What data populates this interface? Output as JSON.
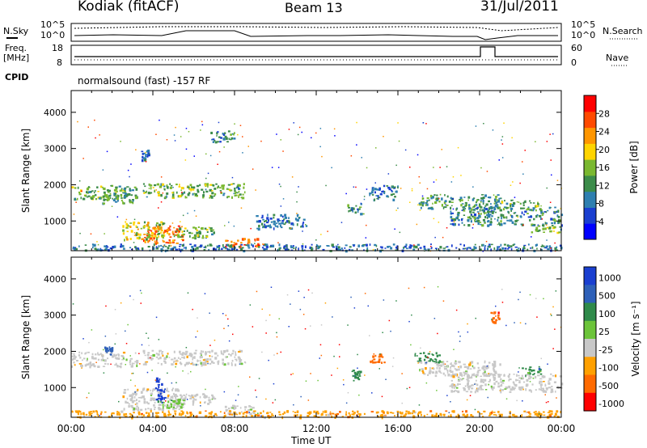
{
  "header": {
    "station": "Kodiak (fitACF)",
    "beam": "Beam 13",
    "date": "31/Jul/2011"
  },
  "meta": {
    "left_label_top": "N.Sky",
    "right_label_top": "N.Search",
    "left_label_freq_1": "Freq.",
    "left_label_freq_2": "[MHz]",
    "right_label_freq": "Nave",
    "cpid_label": "CPID",
    "program": "normalsound (fast) -157 RF",
    "top_axis_left_ticks": [
      "10^5",
      "10^0"
    ],
    "top_axis_right_ticks": [
      "10^5",
      "10^0"
    ],
    "freq_axis_left_ticks": [
      "18",
      "8"
    ],
    "freq_axis_right_ticks": [
      "60",
      "0"
    ]
  },
  "chart_data": [
    {
      "type": "heatmap",
      "panel": "power",
      "ylabel": "Slant Range [km]",
      "ylim": [
        180,
        4600
      ],
      "yticks": [
        1000,
        2000,
        3000,
        4000
      ],
      "colorbar": {
        "label": "Power [dB]",
        "range": [
          0,
          32
        ],
        "ticks": [
          "28",
          "24",
          "20",
          "16",
          "12",
          "8",
          "4"
        ],
        "colors": [
          "#0000ff",
          "#1a3fd0",
          "#2e7fb0",
          "#3c8c4a",
          "#7ab830",
          "#ffd400",
          "#ff9600",
          "#ff4a00",
          "#ff0000"
        ]
      },
      "regions": [
        {
          "t0": 0,
          "t1": 3.2,
          "r0": 1600,
          "r1": 2000,
          "level": 14
        },
        {
          "t0": 1.5,
          "t1": 3.0,
          "r0": 1500,
          "r1": 1800,
          "level": 12
        },
        {
          "t0": 3.5,
          "t1": 8.5,
          "r0": 1650,
          "r1": 2050,
          "level": 14
        },
        {
          "t0": 3.5,
          "t1": 5.5,
          "r0": 400,
          "r1": 900,
          "level": 26
        },
        {
          "t0": 2.5,
          "t1": 4.5,
          "r0": 500,
          "r1": 1000,
          "level": 18
        },
        {
          "t0": 5.0,
          "t1": 7.0,
          "r0": 550,
          "r1": 850,
          "level": 14
        },
        {
          "t0": 7.5,
          "t1": 9.2,
          "r0": 300,
          "r1": 550,
          "level": 26
        },
        {
          "t0": 6.8,
          "t1": 8.0,
          "r0": 3200,
          "r1": 3500,
          "level": 10
        },
        {
          "t0": 3.4,
          "t1": 3.8,
          "r0": 2700,
          "r1": 3000,
          "level": 8
        },
        {
          "t0": 0,
          "t1": 24,
          "r0": 200,
          "r1": 380,
          "level": 8
        },
        {
          "t0": 17.0,
          "t1": 21.0,
          "r0": 1350,
          "r1": 1750,
          "level": 12
        },
        {
          "t0": 18.5,
          "t1": 24.0,
          "r0": 900,
          "r1": 1400,
          "level": 10
        },
        {
          "t0": 21.0,
          "t1": 23.0,
          "r0": 1350,
          "r1": 1600,
          "level": 14
        },
        {
          "t0": 13.5,
          "t1": 14.3,
          "r0": 1200,
          "r1": 1500,
          "level": 10
        },
        {
          "t0": 14.5,
          "t1": 16.0,
          "r0": 1600,
          "r1": 2000,
          "level": 8
        },
        {
          "t0": 9.0,
          "t1": 11.5,
          "r0": 800,
          "r1": 1200,
          "level": 8
        },
        {
          "t0": 22.5,
          "t1": 24.0,
          "r0": 700,
          "r1": 900,
          "level": 14
        }
      ]
    },
    {
      "type": "heatmap",
      "panel": "velocity",
      "xlabel": "Time UT",
      "ylabel": "Slant Range [km]",
      "ylim": [
        180,
        4600
      ],
      "yticks": [
        1000,
        2000,
        3000,
        4000
      ],
      "xticks": [
        "00:00",
        "04:00",
        "08:00",
        "12:00",
        "16:00",
        "20:00",
        "00:00"
      ],
      "xlim": [
        0,
        24
      ],
      "colorbar": {
        "label": "Velocity [m s⁻¹]",
        "ticks": [
          "1000",
          "500",
          "100",
          "25",
          "-25",
          "-100",
          "-500",
          "-1000"
        ],
        "colors": [
          "#1a3fd0",
          "#2e60b8",
          "#2f8a4a",
          "#6cc43a",
          "#c8c8c8",
          "#ffa000",
          "#ff6a00",
          "#ff0000"
        ]
      },
      "regions": [
        {
          "t0": 0,
          "t1": 3.2,
          "r0": 1600,
          "r1": 2000,
          "level": 4
        },
        {
          "t0": 3.5,
          "t1": 8.5,
          "r0": 1650,
          "r1": 2050,
          "level": 4
        },
        {
          "t0": 2.5,
          "t1": 5.5,
          "r0": 400,
          "r1": 1000,
          "level": 4
        },
        {
          "t0": 5.0,
          "t1": 7.0,
          "r0": 550,
          "r1": 850,
          "level": 4
        },
        {
          "t0": 7.5,
          "t1": 9.2,
          "r0": 300,
          "r1": 550,
          "level": 4
        },
        {
          "t0": 0,
          "t1": 24,
          "r0": 200,
          "r1": 380,
          "level": 5
        },
        {
          "t0": 17.0,
          "t1": 21.0,
          "r0": 1350,
          "r1": 1750,
          "level": 4
        },
        {
          "t0": 18.5,
          "t1": 24.0,
          "r0": 900,
          "r1": 1400,
          "level": 4
        },
        {
          "t0": 4.1,
          "t1": 4.6,
          "r0": 600,
          "r1": 1300,
          "level": 0
        },
        {
          "t0": 1.6,
          "t1": 2.0,
          "r0": 1900,
          "r1": 2150,
          "level": 1
        },
        {
          "t0": 13.7,
          "t1": 14.2,
          "r0": 1200,
          "r1": 1500,
          "level": 2
        },
        {
          "t0": 14.6,
          "t1": 15.3,
          "r0": 1700,
          "r1": 1950,
          "level": 6
        },
        {
          "t0": 16.8,
          "t1": 18.0,
          "r0": 1700,
          "r1": 2000,
          "level": 2
        },
        {
          "t0": 22.0,
          "t1": 23.0,
          "r0": 1350,
          "r1": 1600,
          "level": 2
        },
        {
          "t0": 20.5,
          "t1": 21.0,
          "r0": 2800,
          "r1": 3100,
          "level": 6
        },
        {
          "t0": 4.2,
          "t1": 5.5,
          "r0": 450,
          "r1": 700,
          "level": 3
        }
      ]
    }
  ]
}
